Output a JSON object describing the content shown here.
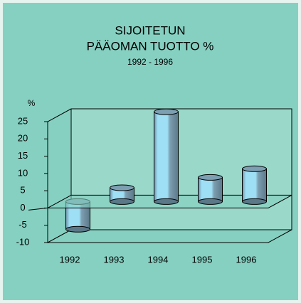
{
  "chart_data": {
    "type": "bar3d",
    "title": [
      "SIJOITETUN",
      "PÄÄOMAN TUOTTO %"
    ],
    "subtitle": "1992 - 1996",
    "y_label": "%",
    "categories": [
      "1992",
      "1993",
      "1994",
      "1995",
      "1996"
    ],
    "values": [
      -8,
      4,
      26,
      7,
      9.5
    ],
    "color": "#9fdff5",
    "ylim": [
      -10,
      25
    ],
    "yticks": [
      -10,
      -5,
      0,
      5,
      10,
      15,
      20,
      25
    ]
  }
}
